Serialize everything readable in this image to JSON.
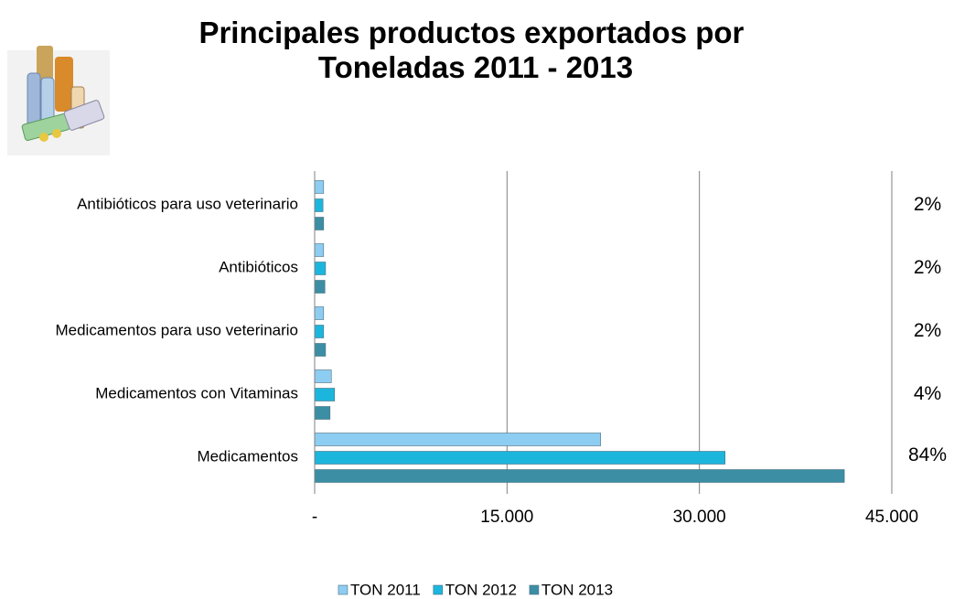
{
  "chart_data": {
    "type": "hbar",
    "title": "Principales productos exportados por Toneladas 2011 - 2013",
    "categories": [
      "Antibióticos para uso veterinario",
      "Antibióticos",
      "Medicamentos para uso veterinario",
      "Medicamentos con Vitaminas",
      "Medicamentos"
    ],
    "series": [
      {
        "name": "TON 2011",
        "color": "#8ecdf2",
        "values": [
          700,
          700,
          700,
          1300,
          22300
        ]
      },
      {
        "name": "TON 2012",
        "color": "#1cb6dd",
        "values": [
          650,
          850,
          700,
          1550,
          32000
        ]
      },
      {
        "name": "TON 2013",
        "color": "#3b8ea4",
        "values": [
          700,
          800,
          850,
          1200,
          41300
        ]
      }
    ],
    "annotations": [
      "2%",
      "2%",
      "2%",
      "4%",
      "84%"
    ],
    "xlim": [
      0,
      45000
    ],
    "xticks": [
      {
        "value": 0,
        "label": "-"
      },
      {
        "value": 15000,
        "label": "15.000"
      },
      {
        "value": 30000,
        "label": "30.000"
      },
      {
        "value": 45000,
        "label": "45.000"
      }
    ],
    "grid": true,
    "legend": "bottom"
  }
}
